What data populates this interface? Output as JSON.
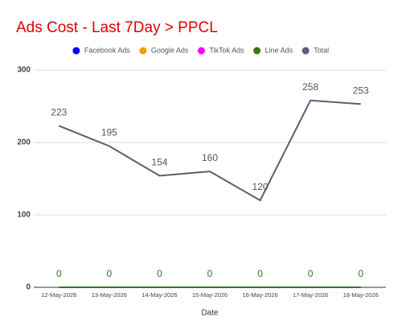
{
  "chart_data": {
    "type": "line",
    "title": "Ads Cost - Last 7Day > PPCL",
    "x_label": "Date",
    "categories": [
      "12-May-2026",
      "13-May-2026",
      "14-May-2026",
      "15-May-2026",
      "16-May-2026",
      "17-May-2026",
      "18-May-2026"
    ],
    "series": [
      {
        "name": "Facebook Ads",
        "color": "#0000ff",
        "values": [
          0,
          0,
          0,
          0,
          0,
          0,
          0
        ],
        "data_labels": false
      },
      {
        "name": "Google Ads",
        "color": "#ff9900",
        "values": [
          0,
          0,
          0,
          0,
          0,
          0,
          0
        ],
        "data_labels": false
      },
      {
        "name": "TikTok Ads",
        "color": "#ff00ff",
        "values": [
          0,
          0,
          0,
          0,
          0,
          0,
          0
        ],
        "data_labels": false
      },
      {
        "name": "Line Ads",
        "color": "#38761d",
        "values": [
          0,
          0,
          0,
          0,
          0,
          0,
          0
        ],
        "data_labels": true
      },
      {
        "name": "Total",
        "color": "#5f5b73",
        "values": [
          223,
          195,
          154,
          160,
          120,
          258,
          253
        ],
        "data_labels": true
      }
    ],
    "ylim": [
      0,
      300
    ],
    "yticks": [
      0,
      100,
      200,
      300
    ],
    "grid": true,
    "legend": "top"
  }
}
